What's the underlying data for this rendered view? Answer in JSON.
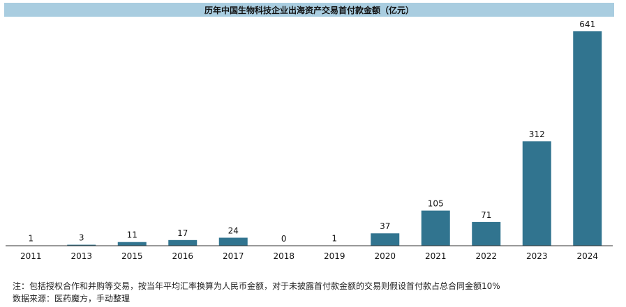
{
  "chart_data": {
    "type": "bar",
    "title": "历年中国生物科技企业出海资产交易首付款金额（亿元）",
    "categories": [
      "2011",
      "2013",
      "2015",
      "2016",
      "2017",
      "2018",
      "2019",
      "2020",
      "2021",
      "2022",
      "2023",
      "2024"
    ],
    "values": [
      1,
      3,
      11,
      17,
      24,
      0,
      1,
      37,
      105,
      71,
      312,
      641
    ],
    "ylim": [
      0,
      641
    ],
    "grid": false,
    "legend": "none",
    "bar_color": "#31748f",
    "title_background": "#a9cde0"
  },
  "notes": {
    "note": "注：包括授权合作和并购等交易，按当年平均汇率换算为人民币金额，对于未披露首付款金额的交易则假设首付款占总合同金额10%",
    "source": "数据来源：医药魔方，手动整理"
  }
}
